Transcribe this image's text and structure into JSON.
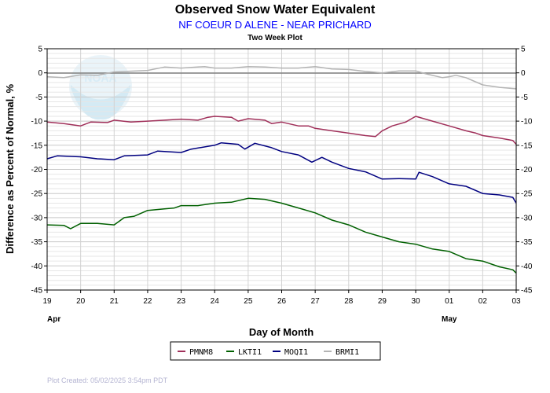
{
  "chart_data": {
    "type": "line",
    "title": "Observed Snow Water Equivalent",
    "subtitle": "NF COEUR D ALENE - NEAR PRICHARD",
    "subtitle2": "Two Week Plot",
    "xlabel": "Day of Month",
    "ylabel": "Difference as Percent of Normal, %",
    "ylim": [
      -45,
      5
    ],
    "yticks": [
      5,
      0,
      -5,
      -10,
      -15,
      -20,
      -25,
      -30,
      -35,
      -40,
      -45
    ],
    "xlim": [
      19,
      33
    ],
    "x_tick_labels": [
      "19",
      "20",
      "21",
      "22",
      "23",
      "24",
      "25",
      "26",
      "27",
      "28",
      "29",
      "30",
      "01",
      "02",
      "03"
    ],
    "month_labels": [
      {
        "label": "Apr",
        "x": 19
      },
      {
        "label": "May",
        "x": 31
      }
    ],
    "grid": true,
    "legend_position": "bottom-center",
    "series": [
      {
        "name": "PMNM8",
        "color": "#a0305a",
        "points": [
          [
            19,
            -10.2
          ],
          [
            19.5,
            -10.5
          ],
          [
            20,
            -11.0
          ],
          [
            20.3,
            -10.2
          ],
          [
            20.8,
            -10.3
          ],
          [
            21,
            -9.8
          ],
          [
            21.5,
            -10.2
          ],
          [
            22,
            -10.0
          ],
          [
            22.5,
            -9.8
          ],
          [
            23,
            -9.6
          ],
          [
            23.5,
            -9.8
          ],
          [
            23.8,
            -9.2
          ],
          [
            24,
            -9.0
          ],
          [
            24.5,
            -9.2
          ],
          [
            24.7,
            -10.0
          ],
          [
            25,
            -9.5
          ],
          [
            25.5,
            -9.8
          ],
          [
            25.7,
            -10.5
          ],
          [
            26,
            -10.2
          ],
          [
            26.5,
            -11.0
          ],
          [
            26.8,
            -11.0
          ],
          [
            27,
            -11.5
          ],
          [
            27.5,
            -12.0
          ],
          [
            28,
            -12.5
          ],
          [
            28.5,
            -13.0
          ],
          [
            28.8,
            -13.2
          ],
          [
            29,
            -12.0
          ],
          [
            29.3,
            -11.0
          ],
          [
            29.7,
            -10.2
          ],
          [
            30,
            -9.0
          ],
          [
            30.5,
            -10.0
          ],
          [
            31,
            -11.0
          ],
          [
            31.5,
            -12.0
          ],
          [
            31.8,
            -12.5
          ],
          [
            32,
            -13.0
          ],
          [
            32.5,
            -13.5
          ],
          [
            32.9,
            -14.0
          ],
          [
            33,
            -14.8
          ]
        ]
      },
      {
        "name": "LKTI1",
        "color": "#006000",
        "points": [
          [
            19,
            -31.5
          ],
          [
            19.5,
            -31.6
          ],
          [
            19.7,
            -32.3
          ],
          [
            20,
            -31.2
          ],
          [
            20.5,
            -31.2
          ],
          [
            21,
            -31.5
          ],
          [
            21.3,
            -30.0
          ],
          [
            21.6,
            -29.7
          ],
          [
            22,
            -28.5
          ],
          [
            22.5,
            -28.2
          ],
          [
            22.8,
            -28.0
          ],
          [
            23,
            -27.5
          ],
          [
            23.5,
            -27.5
          ],
          [
            24,
            -27.0
          ],
          [
            24.5,
            -26.8
          ],
          [
            25,
            -26.0
          ],
          [
            25.5,
            -26.2
          ],
          [
            26,
            -27.0
          ],
          [
            26.5,
            -28.0
          ],
          [
            27,
            -29.0
          ],
          [
            27.5,
            -30.5
          ],
          [
            28,
            -31.5
          ],
          [
            28.5,
            -33.0
          ],
          [
            29,
            -34.0
          ],
          [
            29.5,
            -35.0
          ],
          [
            30,
            -35.5
          ],
          [
            30.5,
            -36.5
          ],
          [
            31,
            -37.0
          ],
          [
            31.5,
            -38.5
          ],
          [
            32,
            -39.0
          ],
          [
            32.5,
            -40.2
          ],
          [
            32.9,
            -40.8
          ],
          [
            33,
            -41.5
          ]
        ]
      },
      {
        "name": "MOQI1",
        "color": "#000080",
        "points": [
          [
            19,
            -17.8
          ],
          [
            19.3,
            -17.2
          ],
          [
            20,
            -17.4
          ],
          [
            20.5,
            -17.8
          ],
          [
            21,
            -18.0
          ],
          [
            21.3,
            -17.2
          ],
          [
            22,
            -17.0
          ],
          [
            22.3,
            -16.2
          ],
          [
            23,
            -16.5
          ],
          [
            23.3,
            -15.8
          ],
          [
            24,
            -15.0
          ],
          [
            24.2,
            -14.5
          ],
          [
            24.7,
            -14.8
          ],
          [
            24.9,
            -15.8
          ],
          [
            25.2,
            -14.6
          ],
          [
            25.7,
            -15.5
          ],
          [
            26,
            -16.3
          ],
          [
            26.5,
            -17.0
          ],
          [
            26.9,
            -18.5
          ],
          [
            27.2,
            -17.5
          ],
          [
            27.5,
            -18.5
          ],
          [
            28,
            -19.8
          ],
          [
            28.5,
            -20.5
          ],
          [
            29,
            -22.0
          ],
          [
            29.5,
            -21.9
          ],
          [
            30,
            -22.0
          ],
          [
            30.1,
            -20.6
          ],
          [
            30.5,
            -21.5
          ],
          [
            31,
            -23.0
          ],
          [
            31.5,
            -23.5
          ],
          [
            32,
            -25.0
          ],
          [
            32.5,
            -25.3
          ],
          [
            32.9,
            -25.8
          ],
          [
            33,
            -27.0
          ]
        ]
      },
      {
        "name": "BRMI1",
        "color": "#b4b4b4",
        "points": [
          [
            19,
            -0.8
          ],
          [
            19.5,
            -1.0
          ],
          [
            20,
            -0.4
          ],
          [
            20.5,
            -0.5
          ],
          [
            21,
            0.2
          ],
          [
            22,
            0.5
          ],
          [
            22.5,
            1.2
          ],
          [
            23,
            1.0
          ],
          [
            23.7,
            1.3
          ],
          [
            24,
            1.0
          ],
          [
            24.5,
            1.0
          ],
          [
            25,
            1.3
          ],
          [
            25.5,
            1.2
          ],
          [
            26,
            1.0
          ],
          [
            26.5,
            1.0
          ],
          [
            27,
            1.3
          ],
          [
            27.5,
            0.8
          ],
          [
            28,
            0.7
          ],
          [
            28.5,
            0.3
          ],
          [
            29,
            0.0
          ],
          [
            29.5,
            0.4
          ],
          [
            30,
            0.4
          ],
          [
            30.3,
            -0.2
          ],
          [
            30.8,
            -1.0
          ],
          [
            31,
            -0.8
          ],
          [
            31.2,
            -0.5
          ],
          [
            31.5,
            -1.0
          ],
          [
            32,
            -2.5
          ],
          [
            32.5,
            -3.0
          ],
          [
            33,
            -3.3
          ]
        ]
      }
    ]
  },
  "footer": {
    "created": "Plot Created: 05/02/2025 3:54pm PDT"
  },
  "watermark": {
    "text": "NOAA",
    "color": "#c8e4f0"
  }
}
